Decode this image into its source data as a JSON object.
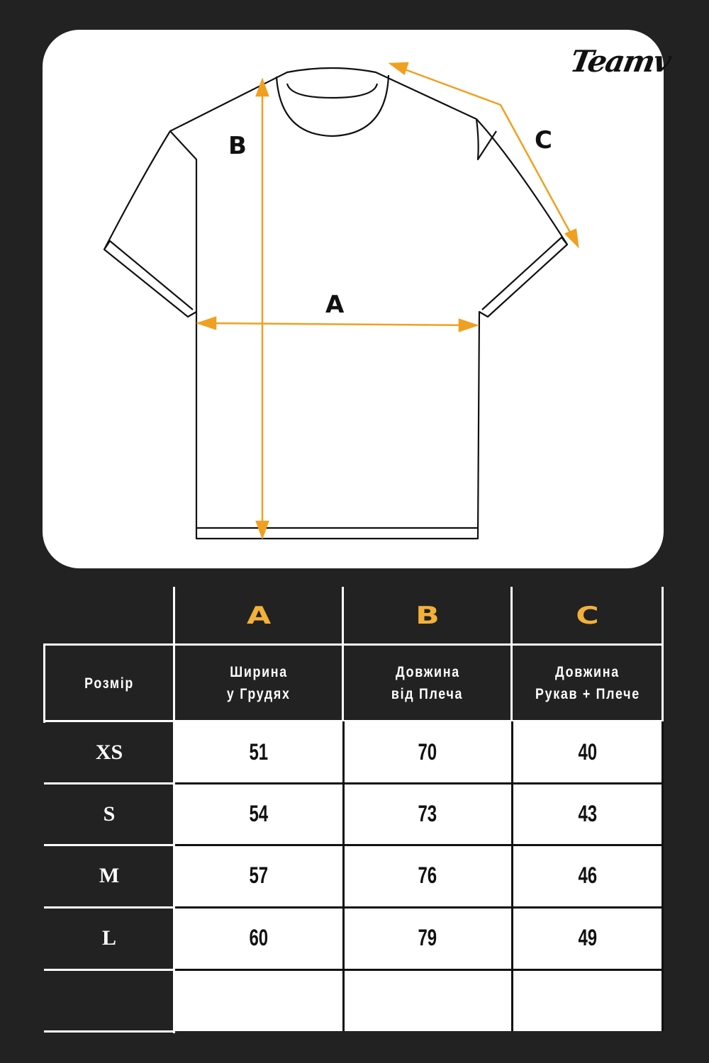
{
  "brand": {
    "logo_text": "Teamv"
  },
  "diagram": {
    "labels": {
      "a": "A",
      "b": "B",
      "c": "C"
    },
    "arrow_color": "#f0a020",
    "card_color": "#ffffff"
  },
  "table": {
    "letters": [
      "A",
      "B",
      "C"
    ],
    "size_header": "Розмір",
    "headers": [
      [
        "Ширина",
        "у Грудях"
      ],
      [
        "Довжина",
        "від Плеча"
      ],
      [
        "Довжина",
        "Рукав + Плече"
      ]
    ],
    "rows": [
      {
        "size": "XS",
        "values": [
          "51",
          "70",
          "40"
        ]
      },
      {
        "size": "S",
        "values": [
          "54",
          "73",
          "43"
        ]
      },
      {
        "size": "M",
        "values": [
          "57",
          "76",
          "46"
        ]
      },
      {
        "size": "L",
        "values": [
          "60",
          "79",
          "49"
        ]
      }
    ],
    "letter_color": "#f3b13a",
    "background": "#222222"
  }
}
